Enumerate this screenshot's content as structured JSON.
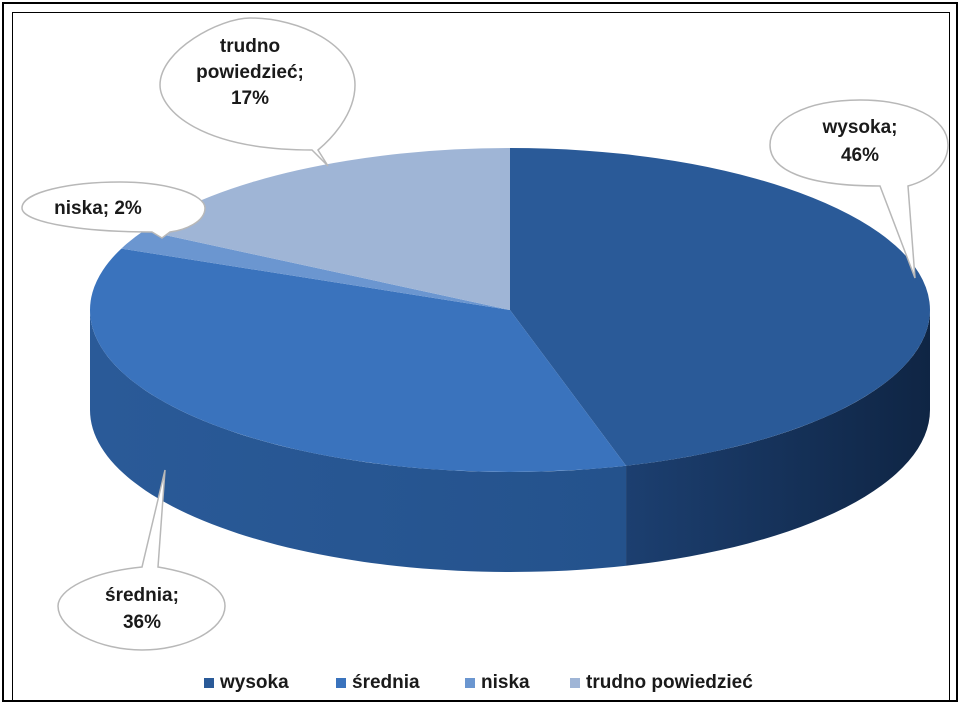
{
  "chart_data": {
    "type": "pie",
    "title": "",
    "categories": [
      "wysoka",
      "średnia",
      "niska",
      "trudno powiedzieć"
    ],
    "values": [
      46,
      36,
      2,
      17
    ],
    "data_labels": [
      [
        "wysoka;",
        "46%"
      ],
      [
        "średnia;",
        "36%"
      ],
      [
        "niska; 2%"
      ],
      [
        "trudno",
        "powiedzieć;",
        "17%"
      ]
    ],
    "legend": {
      "position": "bottom",
      "entries": [
        "wysoka",
        "średnia",
        "niska",
        "trudno powiedzieć"
      ]
    },
    "colors": [
      "#2a5a98",
      "#3a73bd",
      "#6b96d0",
      "#9fb5d6"
    ],
    "three_d": true
  }
}
